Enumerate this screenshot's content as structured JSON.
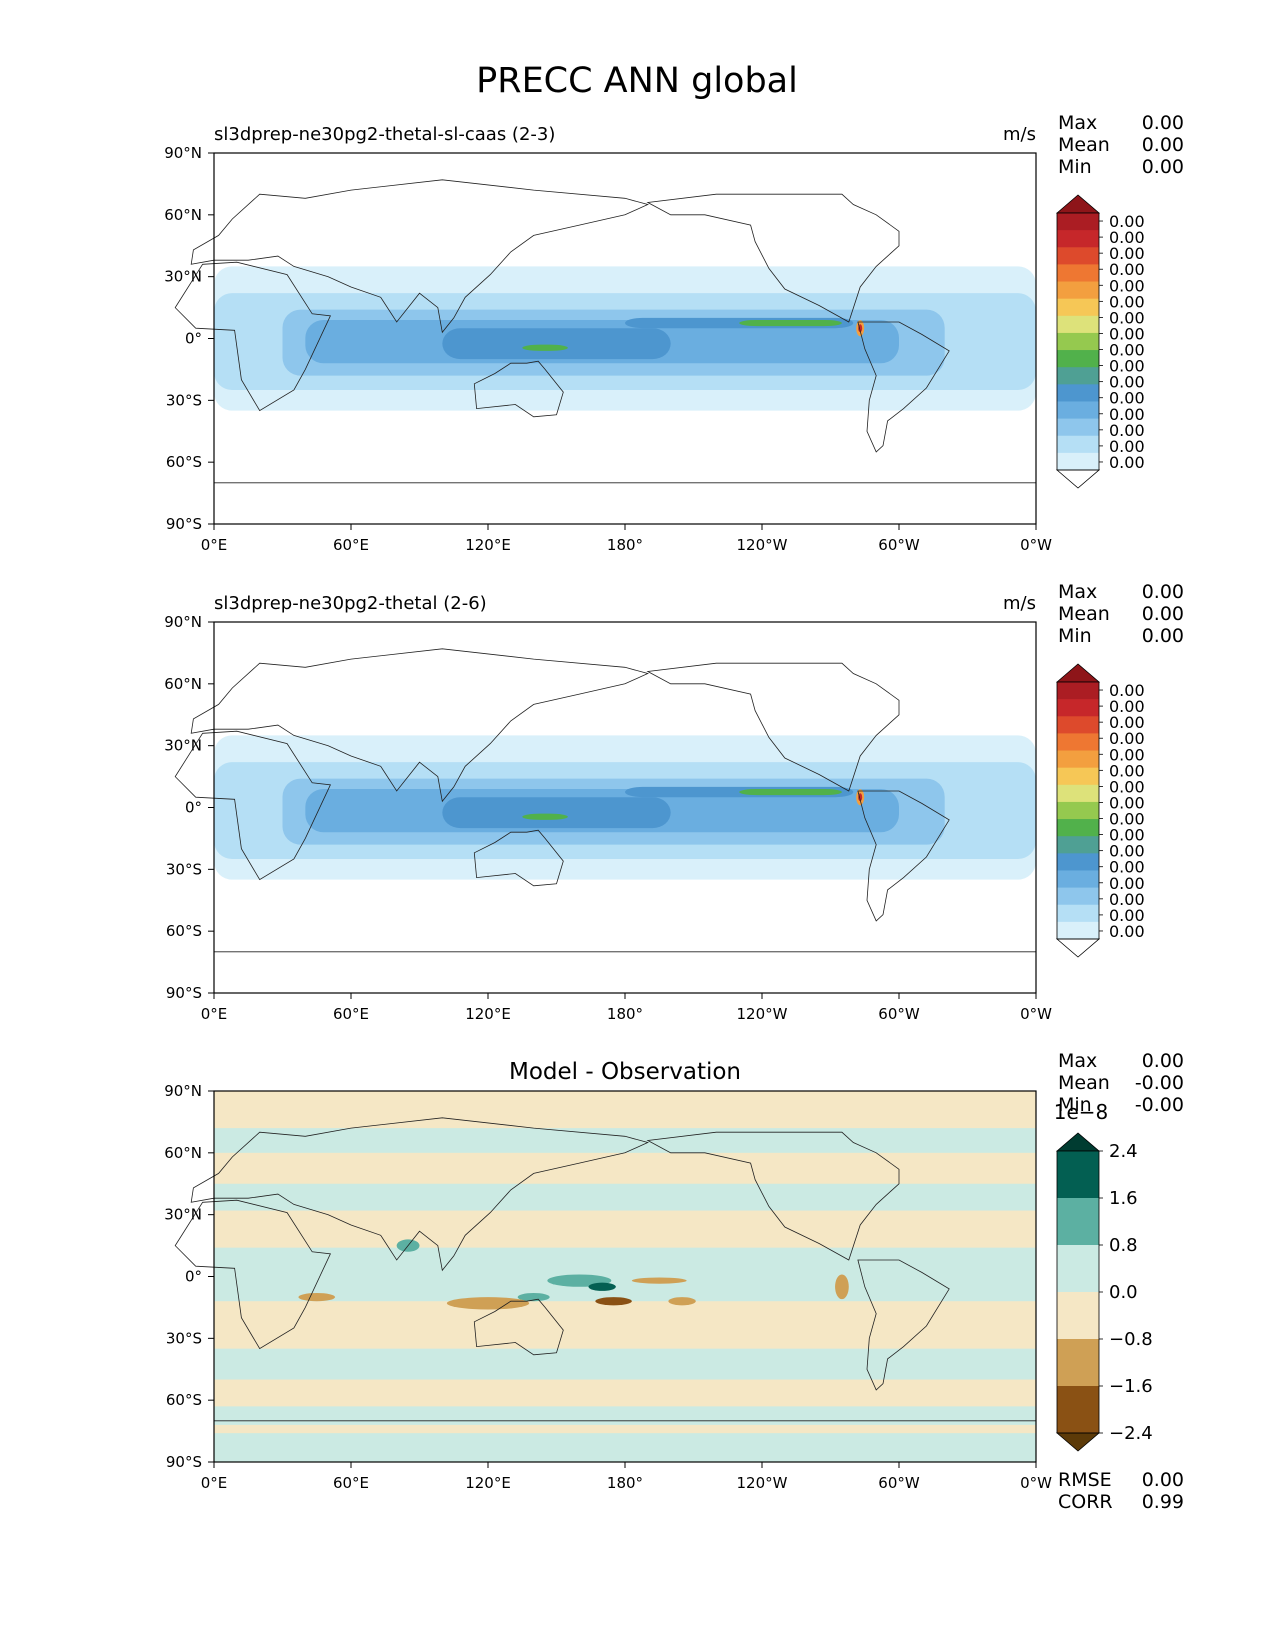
{
  "figure_title": "PRECC ANN global",
  "panels": [
    {
      "title_left": "sl3dprep-ne30pg2-thetal-sl-caas (2-3)",
      "title_center": "",
      "units": "m/s",
      "stats": [
        {
          "label": "Max",
          "value": "0.00"
        },
        {
          "label": "Mean",
          "value": "0.00"
        },
        {
          "label": "Min",
          "value": "0.00"
        }
      ],
      "colorbar": {
        "colors": [
          "#ffffff",
          "#d9f0fa",
          "#b5dff5",
          "#8ec6ec",
          "#6aaee0",
          "#4d96cf",
          "#4fa094",
          "#51b14b",
          "#95c94f",
          "#dde27a",
          "#f6c756",
          "#f39f3f",
          "#ee7732",
          "#dd4a2c",
          "#c6272a",
          "#ab1d23",
          "#8e1519"
        ],
        "labels": [
          "0.00",
          "0.00",
          "0.00",
          "0.00",
          "0.00",
          "0.00",
          "0.00",
          "0.00",
          "0.00",
          "0.00",
          "0.00",
          "0.00",
          "0.00",
          "0.00",
          "0.00",
          "0.00"
        ],
        "exponent": ""
      },
      "footer_stats": []
    },
    {
      "title_left": "sl3dprep-ne30pg2-thetal (2-6)",
      "title_center": "",
      "units": "m/s",
      "stats": [
        {
          "label": "Max",
          "value": "0.00"
        },
        {
          "label": "Mean",
          "value": "0.00"
        },
        {
          "label": "Min",
          "value": "0.00"
        }
      ],
      "colorbar": {
        "colors": [
          "#ffffff",
          "#d9f0fa",
          "#b5dff5",
          "#8ec6ec",
          "#6aaee0",
          "#4d96cf",
          "#4fa094",
          "#51b14b",
          "#95c94f",
          "#dde27a",
          "#f6c756",
          "#f39f3f",
          "#ee7732",
          "#dd4a2c",
          "#c6272a",
          "#ab1d23",
          "#8e1519"
        ],
        "labels": [
          "0.00",
          "0.00",
          "0.00",
          "0.00",
          "0.00",
          "0.00",
          "0.00",
          "0.00",
          "0.00",
          "0.00",
          "0.00",
          "0.00",
          "0.00",
          "0.00",
          "0.00",
          "0.00"
        ],
        "exponent": ""
      },
      "footer_stats": []
    },
    {
      "title_left": "",
      "title_center": "Model - Observation",
      "units": "",
      "stats": [
        {
          "label": "Max",
          "value": "0.00"
        },
        {
          "label": "Mean",
          "value": "-0.00"
        },
        {
          "label": "Min",
          "value": "-0.00"
        }
      ],
      "colorbar": {
        "colors": [
          "#5c3a08",
          "#8a5114",
          "#cfa055",
          "#f5e7c5",
          "#cbeae3",
          "#5cb0a2",
          "#035f52",
          "#003c31"
        ],
        "labels": [
          "2.4",
          "1.6",
          "0.8",
          "0.0",
          "−0.8",
          "−1.6",
          "−2.4"
        ],
        "exponent": "1e−8"
      },
      "footer_stats": [
        {
          "label": "RMSE",
          "value": "0.00"
        },
        {
          "label": "CORR",
          "value": "0.99"
        }
      ]
    }
  ],
  "axes": {
    "x_ticks": [
      "0°E",
      "60°E",
      "120°E",
      "180°",
      "120°W",
      "60°W",
      "0°W"
    ],
    "y_ticks": [
      "90°N",
      "60°N",
      "30°N",
      "0°",
      "30°S",
      "60°S",
      "90°S"
    ]
  },
  "chart_data": [
    {
      "type": "heatmap",
      "title": "sl3dprep-ne30pg2-thetal-sl-caas (2-3)",
      "variable": "PRECC",
      "units": "m/s",
      "lon_range": [
        0,
        360
      ],
      "lat_range": [
        -90,
        90
      ],
      "max": 0.0,
      "mean": 0.0,
      "min": 0.0,
      "levels_shown": 16
    },
    {
      "type": "heatmap",
      "title": "sl3dprep-ne30pg2-thetal (2-6)",
      "variable": "PRECC",
      "units": "m/s",
      "lon_range": [
        0,
        360
      ],
      "lat_range": [
        -90,
        90
      ],
      "max": 0.0,
      "mean": 0.0,
      "min": 0.0,
      "levels_shown": 16
    },
    {
      "type": "heatmap",
      "title": "Model - Observation",
      "lon_range": [
        0,
        360
      ],
      "lat_range": [
        -90,
        90
      ],
      "levels": [
        -2.4e-08,
        -1.6e-08,
        -8e-09,
        0.0,
        8e-09,
        1.6e-08,
        2.4e-08
      ],
      "max": 0.0,
      "mean": -0.0,
      "min": -0.0,
      "rmse": 0.0,
      "corr": 0.99
    }
  ]
}
